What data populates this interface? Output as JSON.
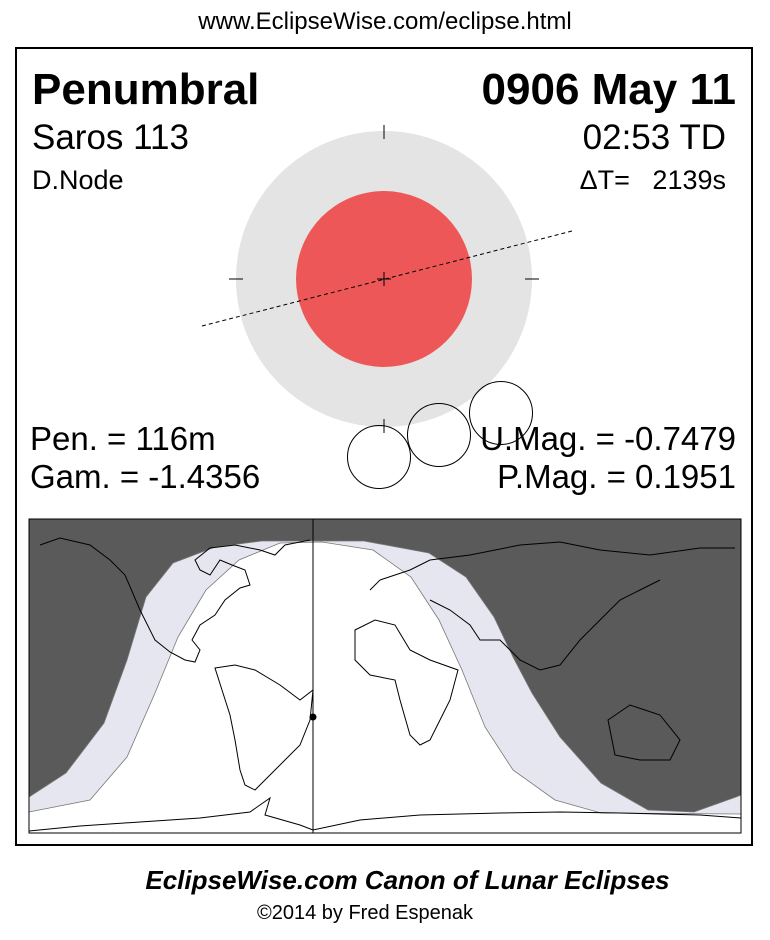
{
  "url": "www.EclipseWise.com/eclipse.html",
  "eclipse_type": "Penumbral",
  "date": "0906 May 11",
  "saros": "Saros 113",
  "time": "02:53 TD",
  "node": "D.Node",
  "delta_t": "ΔT=   2139s",
  "pen_duration": "Pen. = 116m",
  "gamma": "Gam. = -1.4356",
  "umbral_mag": "U.Mag. = -0.7479",
  "penumbral_mag": "P.Mag. = 0.1951",
  "footer_title": "EclipseWise.com Canon of Lunar Eclipses",
  "copyright": "©2014 by Fred Espenak",
  "colors": {
    "umbra": "#ee5757",
    "penumbra": "#e4e4e4",
    "night": "#5a5a5a",
    "penumbral_zone": "#e6e6f0"
  }
}
